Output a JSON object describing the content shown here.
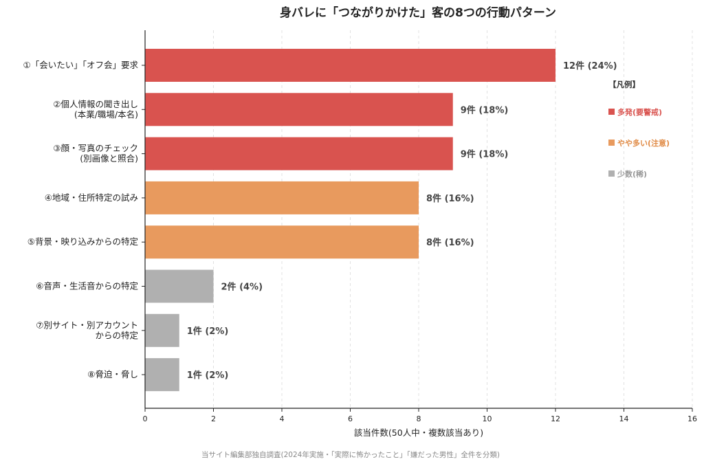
{
  "colors": {
    "high": "#d9534f",
    "mid": "#e89a5e",
    "low": "#b0b0b0",
    "legend_high_text": "#d9534f",
    "legend_mid_text": "#e08a45",
    "legend_low_text": "#999999",
    "grid": "#e0e0e0"
  },
  "chart_data": {
    "type": "bar",
    "orientation": "horizontal",
    "title": "身バレに「つながりかけた」客の8つの行動パターン",
    "xlabel": "該当件数(50人中・複数該当あり)",
    "ylabel": "",
    "xlim": [
      0,
      16
    ],
    "xticks": [
      0,
      2,
      4,
      6,
      8,
      10,
      12,
      14,
      16
    ],
    "grid": "vertical-dashed",
    "legend_position": "right",
    "categories": [
      [
        "①「会いたい」「オフ会」要求"
      ],
      [
        "②個人情報の聞き出し",
        "(本業/職場/本名)"
      ],
      [
        "③顔・写真のチェック",
        "(別画像と照合)"
      ],
      [
        "④地域・住所特定の試み"
      ],
      [
        "⑤背景・映り込みからの特定"
      ],
      [
        "⑥音声・生活音からの特定"
      ],
      [
        "⑦別サイト・別アカウント",
        "からの特定"
      ],
      [
        "⑧脅迫・脅し"
      ]
    ],
    "values": [
      12,
      9,
      9,
      8,
      8,
      2,
      1,
      1
    ],
    "value_labels": [
      "12件 (24%)",
      "9件 (18%)",
      "9件 (18%)",
      "8件 (16%)",
      "8件 (16%)",
      "2件 (4%)",
      "1件 (2%)",
      "1件 (2%)"
    ],
    "levels": [
      "high",
      "high",
      "high",
      "mid",
      "mid",
      "low",
      "low",
      "low"
    ],
    "legend": {
      "title": "【凡例】",
      "items": [
        {
          "key": "high",
          "label": "多発(要警戒)"
        },
        {
          "key": "mid",
          "label": "やや多い(注意)"
        },
        {
          "key": "low",
          "label": "少数(稀)"
        }
      ]
    }
  },
  "caption": "当サイト編集部独自調査(2024年実施・「実際に怖かったこと」「嫌だった男性」全件を分類)"
}
